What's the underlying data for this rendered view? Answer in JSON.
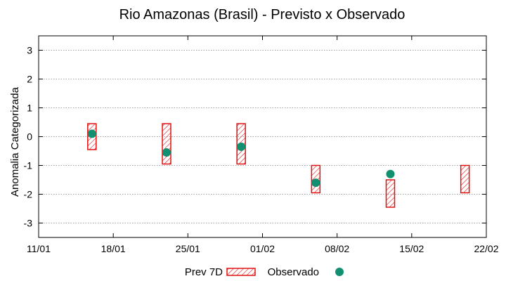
{
  "chart_data": {
    "type": "interval-scatter",
    "title": "Rio Amazonas (Brasil) - Previsto x Observado",
    "ylabel": "Anomalia Categorizada",
    "xlabel": "",
    "xlim": [
      0,
      42
    ],
    "ylim": [
      -3.5,
      3.5
    ],
    "x_ticks": [
      {
        "x": 0,
        "label": "11/01"
      },
      {
        "x": 7,
        "label": "18/01"
      },
      {
        "x": 14,
        "label": "25/01"
      },
      {
        "x": 21,
        "label": "01/02"
      },
      {
        "x": 28,
        "label": "08/02"
      },
      {
        "x": 35,
        "label": "15/02"
      },
      {
        "x": 42,
        "label": "22/02"
      }
    ],
    "y_ticks": [
      3,
      2,
      1,
      0,
      -1,
      -2,
      -3
    ],
    "grid": true,
    "series": [
      {
        "name": "Prev 7D",
        "style": "hatched-box",
        "color": "#e01010",
        "points": [
          {
            "x": 5,
            "low": -0.45,
            "high": 0.45
          },
          {
            "x": 12,
            "low": -0.95,
            "high": 0.45
          },
          {
            "x": 19,
            "low": -0.95,
            "high": 0.45
          },
          {
            "x": 26,
            "low": -1.95,
            "high": -1.0
          },
          {
            "x": 33,
            "low": -2.45,
            "high": -1.5
          },
          {
            "x": 40,
            "low": -1.95,
            "high": -1.0
          }
        ]
      },
      {
        "name": "Observado",
        "style": "circle",
        "color": "#109070",
        "points": [
          {
            "x": 5,
            "y": 0.1
          },
          {
            "x": 12,
            "y": -0.55
          },
          {
            "x": 19,
            "y": -0.35
          },
          {
            "x": 26,
            "y": -1.6
          },
          {
            "x": 33,
            "y": -1.3
          }
        ]
      }
    ],
    "legend": {
      "position": "bottom-center",
      "entries": [
        "Prev 7D",
        "Observado"
      ]
    }
  }
}
